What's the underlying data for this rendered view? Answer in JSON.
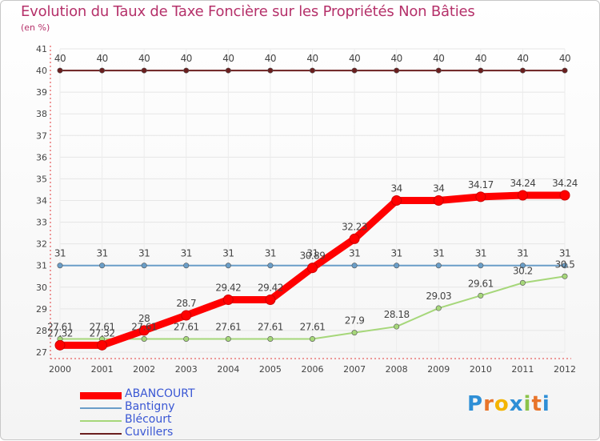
{
  "chart_data": {
    "type": "line",
    "title": "Evolution du Taux de Taxe Foncière sur les Propriétés Non Bâties",
    "ylabel": "(en %)",
    "x": [
      2000,
      2001,
      2002,
      2003,
      2004,
      2005,
      2006,
      2007,
      2008,
      2009,
      2010,
      2011,
      2012
    ],
    "ylim": [
      27,
      41
    ],
    "yticks": [
      27,
      28,
      29,
      30,
      31,
      32,
      33,
      34,
      35,
      36,
      37,
      38,
      39,
      40,
      41
    ],
    "series": [
      {
        "name": "Cuvillers",
        "color": "#6b1f1f",
        "values": [
          40,
          40,
          40,
          40,
          40,
          40,
          40,
          40,
          40,
          40,
          40,
          40,
          40
        ],
        "labels": [
          "40",
          "40",
          "40",
          "40",
          "40",
          "40",
          "40",
          "40",
          "40",
          "40",
          "40",
          "40",
          "40"
        ]
      },
      {
        "name": "Bantigny",
        "color": "#6a9ec8",
        "values": [
          31,
          31,
          31,
          31,
          31,
          31,
          31,
          31,
          31,
          31,
          31,
          31,
          31
        ],
        "labels": [
          "31",
          "31",
          "31",
          "31",
          "31",
          "31",
          "31",
          "31",
          "31",
          "31",
          "31",
          "31",
          "31"
        ]
      },
      {
        "name": "Blécourt",
        "color": "#a6d77a",
        "values": [
          27.61,
          27.61,
          27.61,
          27.61,
          27.61,
          27.61,
          27.61,
          27.9,
          28.18,
          29.03,
          29.61,
          30.2,
          30.5
        ],
        "labels": [
          "27.61",
          "27.61",
          "27.61",
          "27.61",
          "27.61",
          "27.61",
          "27.61",
          "27.9",
          "28.18",
          "29.03",
          "29.61",
          "30.2",
          "30.5"
        ]
      },
      {
        "name": "ABANCOURT",
        "color": "#ff0000",
        "values": [
          27.32,
          27.32,
          28,
          28.7,
          29.42,
          29.42,
          30.89,
          32.23,
          34,
          34,
          34.17,
          34.24,
          34.24
        ],
        "labels": [
          "27.32",
          "27.32",
          "28",
          "28.7",
          "29.42",
          "29.42",
          "30.89",
          "32.23",
          "34",
          "34",
          "34.17",
          "34.24",
          "34.24"
        ]
      }
    ],
    "legend": [
      "ABANCOURT",
      "Bantigny",
      "Blécourt",
      "Cuvillers"
    ]
  },
  "logo": {
    "text": "Proxiti",
    "letters": [
      "P",
      "r",
      "o",
      "x",
      "i",
      "t",
      "i"
    ],
    "colors": [
      "#2f8fd6",
      "#e8742a",
      "#f4b400",
      "#2f8fd6",
      "#8bc34a",
      "#e8742a",
      "#2f8fd6"
    ]
  }
}
